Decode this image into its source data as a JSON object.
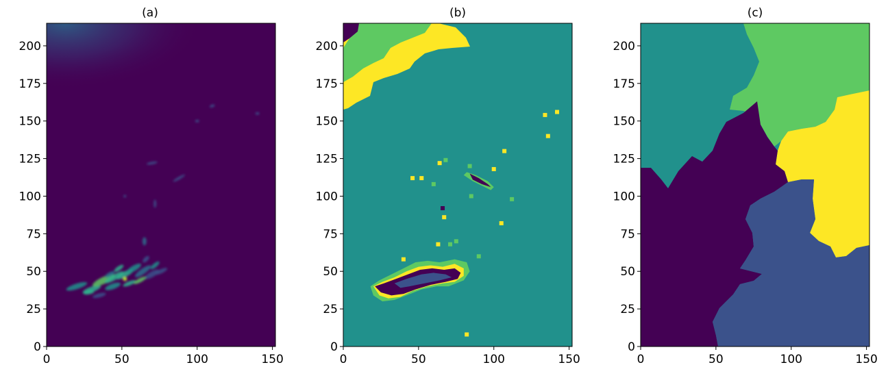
{
  "chart_data": [
    {
      "type": "heatmap",
      "title": "(a)",
      "xlim": [
        0,
        152
      ],
      "ylim": [
        0,
        215
      ],
      "xticks": [
        0,
        50,
        100,
        150
      ],
      "yticks": [
        0,
        25,
        50,
        75,
        100,
        125,
        150,
        175,
        200
      ],
      "colormap": "viridis",
      "regions": [
        {
          "x": 20,
          "y": 40,
          "value": 0.45
        },
        {
          "x": 35,
          "y": 40,
          "value": 0.55
        },
        {
          "x": 50,
          "y": 45,
          "value": 0.6
        },
        {
          "x": 60,
          "y": 50,
          "value": 0.55
        },
        {
          "x": 70,
          "y": 45,
          "value": 0.5
        },
        {
          "x": 40,
          "y": 35,
          "value": 0.45
        },
        {
          "x": 65,
          "y": 70,
          "value": 0.3
        },
        {
          "x": 80,
          "y": 110,
          "value": 0.2
        },
        {
          "x": 70,
          "y": 120,
          "value": 0.15
        },
        {
          "x": 20,
          "y": 210,
          "value": 0.2
        }
      ],
      "background_value": 0.05
    },
    {
      "type": "heatmap",
      "title": "(b)",
      "xlim": [
        0,
        152
      ],
      "ylim": [
        0,
        215
      ],
      "xticks": [
        0,
        50,
        100,
        150
      ],
      "yticks": [
        0,
        25,
        50,
        75,
        100,
        125,
        150,
        175,
        200
      ],
      "colormap": "viridis",
      "background_class": 2,
      "classes": [
        0,
        1,
        2,
        3,
        4
      ]
    },
    {
      "type": "heatmap",
      "title": "(c)",
      "xlim": [
        0,
        152
      ],
      "ylim": [
        0,
        215
      ],
      "xticks": [
        0,
        50,
        100,
        150
      ],
      "yticks": [
        0,
        25,
        50,
        75,
        100,
        125,
        150,
        175,
        200
      ],
      "colormap": "viridis",
      "classes": [
        0,
        1,
        2,
        3,
        4
      ]
    }
  ],
  "palette": {
    "class0": "#440154",
    "class1": "#3b528b",
    "class2": "#21918c",
    "class3": "#5ec962",
    "class4": "#fde725",
    "dark": "#3c0b50",
    "mid": "#2a6f8a",
    "bright": "#4cc27a"
  }
}
